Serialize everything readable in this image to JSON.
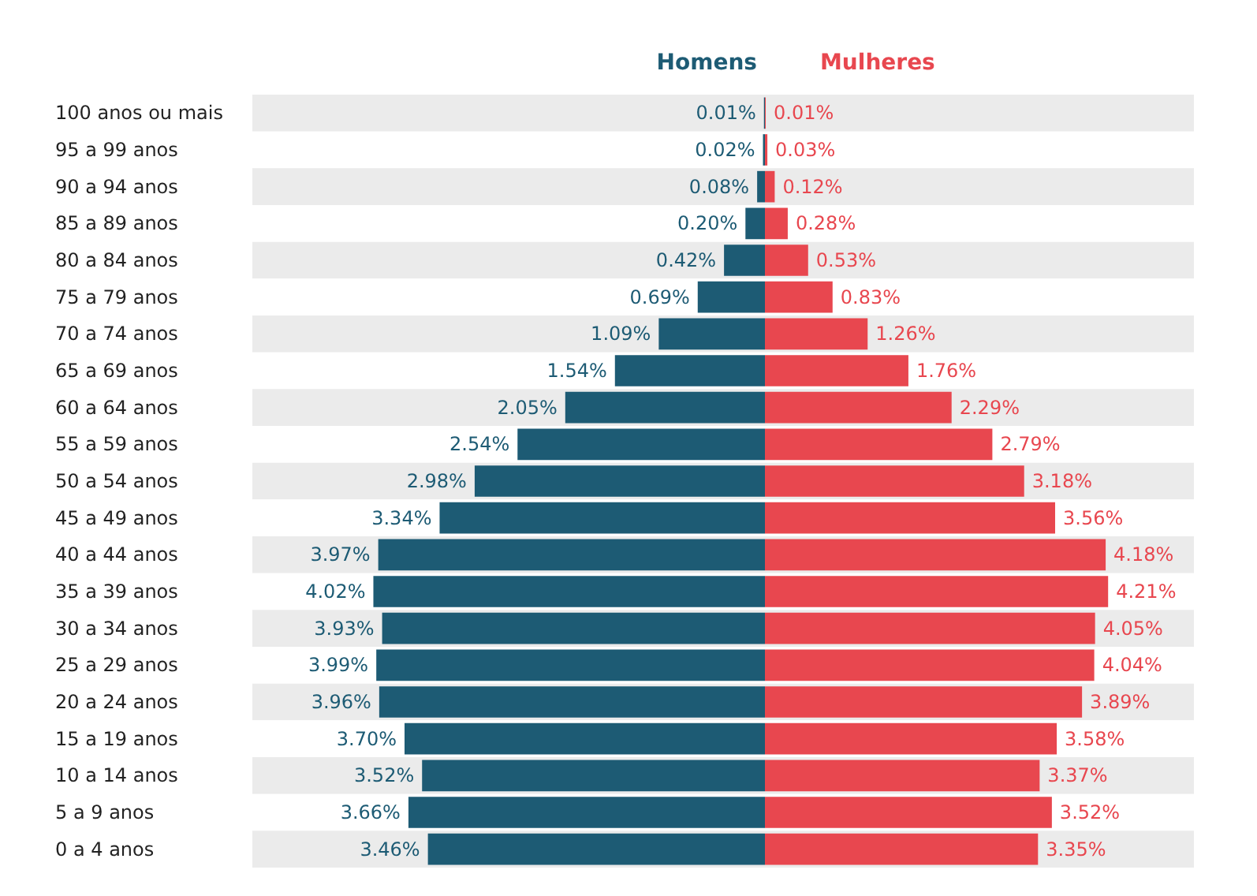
{
  "chart_data": [
    {
      "type": "bar",
      "orientation": "horizontal",
      "legend": "top right",
      "data_labels": true,
      "grid": false,
      "tick_labels": "y",
      "categories": [
        "100 anos ou mais",
        "95 a 99 anos",
        "90 a 94 anos",
        "85 a 89 anos",
        "80 a 84 anos",
        "75 a 79 anos",
        "70 a 74 anos",
        "65 a 69 anos",
        "60 a 64 anos",
        "55 a 59 anos",
        "50 a 54 anos",
        "45 a 49 anos",
        "40 a 44 anos",
        "35 a 39 anos",
        "30 a 34 anos",
        "25 a 29 anos",
        "20 a 24 anos",
        "15 a 19 anos",
        "10 a 14 anos",
        "5 a 9 anos",
        "0 a 4 anos"
      ],
      "series": [
        {
          "name": "Homens",
          "color": "#1d5b74",
          "values": [
            0.01,
            0.02,
            0.08,
            0.2,
            0.42,
            0.69,
            1.09,
            1.54,
            2.05,
            2.54,
            2.98,
            3.34,
            3.97,
            4.02,
            3.93,
            3.99,
            3.96,
            3.7,
            3.52,
            3.66,
            3.46
          ],
          "value_labels": [
            "0.01%",
            "0.02%",
            "0.08%",
            "0.20%",
            "0.42%",
            "0.69%",
            "1.09%",
            "1.54%",
            "2.05%",
            "2.54%",
            "2.98%",
            "3.34%",
            "3.97%",
            "4.02%",
            "3.93%",
            "3.99%",
            "3.96%",
            "3.70%",
            "3.52%",
            "3.66%",
            "3.46%"
          ]
        }
      ]
    },
    {
      "type": "bar",
      "orientation": "horizontal",
      "legend": "top left",
      "data_labels": true,
      "grid": false,
      "tick_labels": "y",
      "categories": [
        null,
        null,
        null,
        null,
        null,
        null,
        null,
        null,
        null,
        null,
        null,
        null,
        null,
        null,
        null,
        null,
        null,
        null,
        null,
        null,
        null
      ],
      "series": [
        {
          "name": "Mulheres",
          "color": "#e8474f",
          "values": [
            0.01,
            0.03,
            0.12,
            0.28,
            0.53,
            0.83,
            1.26,
            1.76,
            2.29,
            2.79,
            3.18,
            3.56,
            4.18,
            4.21,
            4.05,
            4.04,
            3.89,
            3.58,
            3.37,
            3.52,
            3.35
          ],
          "value_labels": [
            "0.01%",
            "0.03%",
            "0.12%",
            "0.28%",
            "0.53%",
            "0.83%",
            "1.26%",
            "1.76%",
            "2.29%",
            "2.79%",
            "3.18%",
            "3.56%",
            "4.18%",
            "4.21%",
            "4.05%",
            "4.04%",
            "3.89%",
            "3.58%",
            "3.37%",
            "3.52%",
            "3.35%"
          ]
        }
      ]
    }
  ]
}
